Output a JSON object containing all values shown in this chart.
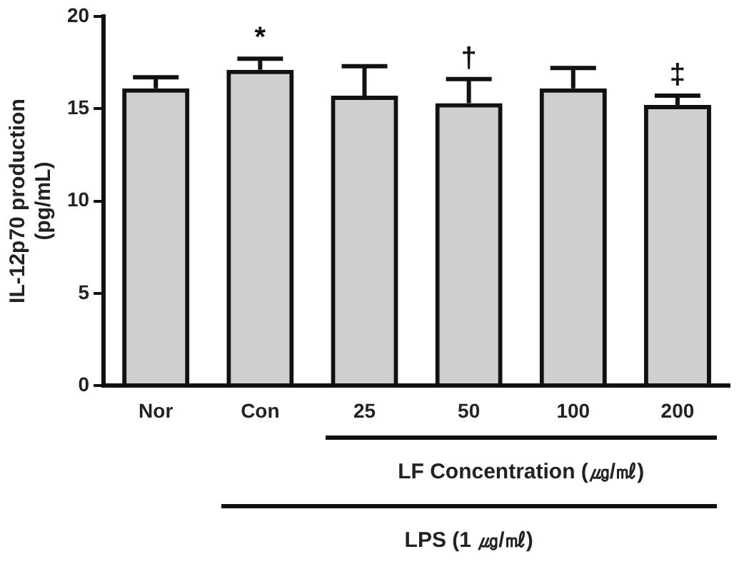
{
  "chart_data": {
    "type": "bar",
    "ylabel": "IL-12p70 production\n(pg/mL)",
    "categories": [
      "Nor",
      "Con",
      "25",
      "50",
      "100",
      "200"
    ],
    "values": [
      16.1,
      17.1,
      15.7,
      15.3,
      16.1,
      15.2
    ],
    "errors": [
      0.6,
      0.6,
      1.6,
      1.3,
      1.1,
      0.5
    ],
    "color": "#111111",
    "ylim": [
      0,
      20
    ],
    "yticks": [
      0,
      5,
      10,
      15,
      20
    ],
    "grid": false,
    "legend": false,
    "annotations": [
      {
        "text": "*",
        "x": "Con",
        "y": 17.7
      },
      {
        "text": "†",
        "x": "50",
        "y": 16.6
      },
      {
        "text": "‡",
        "x": "200",
        "y": 15.7
      },
      "LF Concentration (㎍/㎖)",
      "LPS (1 ㎍/㎖)"
    ]
  }
}
